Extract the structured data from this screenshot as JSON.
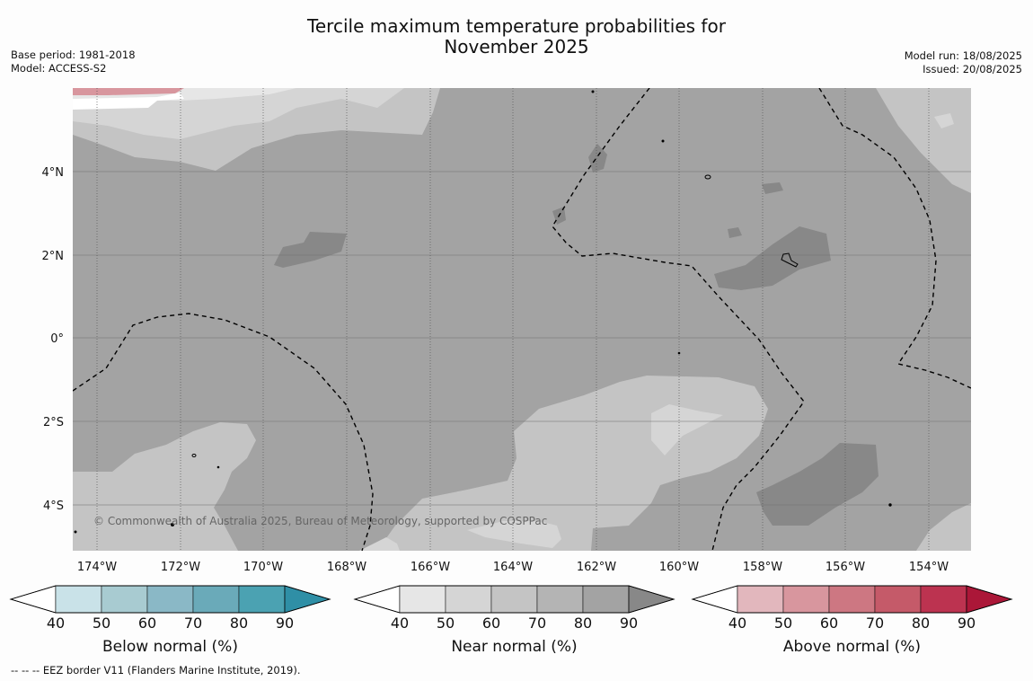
{
  "title_line1": "Tercile maximum temperature probabilities for",
  "title_line2": "November 2025",
  "base_period": "Base period: 1981-2018",
  "model": "Model: ACCESS-S2",
  "model_run": "Model run: 18/08/2025",
  "issued": "Issued: 20/08/2025",
  "copyright": "© Commonwealth of Australia 2025, Bureau of Meteorology, supported by COSPPac",
  "footnote": "--  --  -- EEZ border V11 (Flanders Marine Institute, 2019).",
  "map": {
    "lon_labels": [
      "174°W",
      "172°W",
      "170°W",
      "168°W",
      "166°W",
      "164°W",
      "162°W",
      "160°W",
      "158°W",
      "156°W",
      "154°W"
    ],
    "lat_labels": [
      "4°N",
      "2°N",
      "0°",
      "2°S",
      "4°S"
    ],
    "lon_range": [
      -174.6,
      -153.0
    ],
    "lat_range": [
      -5.2,
      5.9
    ]
  },
  "colorbars": [
    {
      "label": "Below normal (%)",
      "ticks": [
        "40",
        "50",
        "60",
        "70",
        "80",
        "90"
      ],
      "colors": [
        "#ffffff",
        "#c9e2e8",
        "#a8cbd1",
        "#8ab8c6",
        "#6aaab9",
        "#4ba2b2",
        "#2f8fa6"
      ]
    },
    {
      "label": "Near normal (%)",
      "ticks": [
        "40",
        "50",
        "60",
        "70",
        "80",
        "90"
      ],
      "colors": [
        "#ffffff",
        "#e6e6e6",
        "#d5d5d5",
        "#c4c4c4",
        "#b4b4b4",
        "#a3a3a3",
        "#888888"
      ]
    },
    {
      "label": "Above normal (%)",
      "ticks": [
        "40",
        "50",
        "60",
        "70",
        "80",
        "90"
      ],
      "colors": [
        "#ffffff",
        "#e2b7bd",
        "#d8969e",
        "#cd7782",
        "#c55a69",
        "#bc3350",
        "#ab1738"
      ]
    }
  ]
}
